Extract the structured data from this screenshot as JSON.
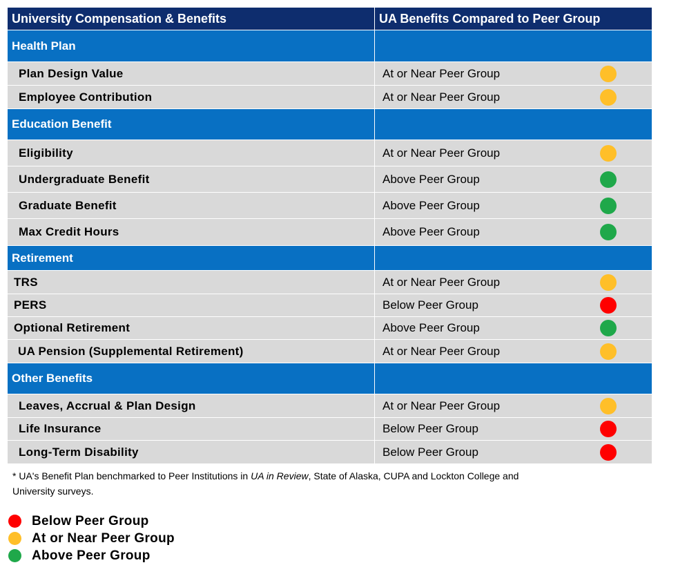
{
  "colors": {
    "title_bg": "#0e2d6e",
    "section_bg": "#0870c3",
    "row_bg": "#d9d9d9",
    "below": "#ff0000",
    "near": "#ffbf29",
    "above": "#1fa84a"
  },
  "header": {
    "col1": "University Compensation & Benefits",
    "col2": "UA Benefits Compared to Peer Group"
  },
  "sections": [
    {
      "title": "Health Plan",
      "rows": [
        {
          "label": "Plan Design Value",
          "value": "At or Near Peer Group",
          "status": "near"
        },
        {
          "label": "Employee Contribution",
          "value": "At or Near Peer Group",
          "status": "near"
        }
      ]
    },
    {
      "title": "Education  Benefit",
      "rows": [
        {
          "label": "Eligibility",
          "value": "At or Near Peer Group",
          "status": "near"
        },
        {
          "label": "Undergraduate  Benefit",
          "value": "Above Peer Group",
          "status": "above"
        },
        {
          "label": "Graduate  Benefit",
          "value": "Above Peer Group",
          "status": "above"
        },
        {
          "label": "Max Credit Hours",
          "value": "Above Peer Group",
          "status": "above"
        }
      ]
    },
    {
      "title": "Retirement",
      "rows": [
        {
          "label": "TRS",
          "value": "At or Near Peer Group",
          "status": "near"
        },
        {
          "label": "PERS",
          "value": "Below Peer Group",
          "status": "below"
        },
        {
          "label": "Optional  Retirement",
          "value": "Above Peer Group",
          "status": "above"
        },
        {
          "label": "UA Pension (Supplemental Retirement)",
          "value": "At or Near Peer Group",
          "status": "near"
        }
      ]
    },
    {
      "title": "Other Benefits",
      "rows": [
        {
          "label": "Leaves, Accrual & Plan Design",
          "value": "At or Near Peer Group",
          "status": "near"
        },
        {
          "label": "Life Insurance",
          "value": "Below Peer Group",
          "status": "below"
        },
        {
          "label": "Long-Term  Disability",
          "value": "Below Peer Group",
          "status": "below"
        }
      ]
    }
  ],
  "footnote": {
    "prefix": "* UA's Benefit Plan benchmarked to Peer Institutions in ",
    "italic": "UA in Review",
    "suffix": ", State of Alaska, CUPA and Lockton College and University surveys."
  },
  "legend": [
    {
      "label": "Below Peer Group",
      "status": "below"
    },
    {
      "label": "At or Near Peer Group",
      "status": "near"
    },
    {
      "label": "Above Peer Group",
      "status": "above"
    }
  ]
}
